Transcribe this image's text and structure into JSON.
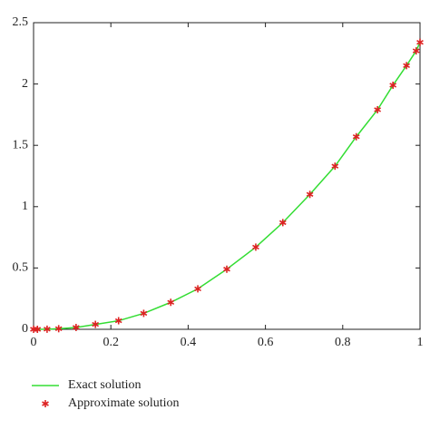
{
  "chart_data": {
    "type": "line",
    "x": [
      0,
      0.01,
      0.035,
      0.065,
      0.11,
      0.16,
      0.22,
      0.285,
      0.355,
      0.425,
      0.5,
      0.575,
      0.645,
      0.715,
      0.78,
      0.835,
      0.89,
      0.93,
      0.965,
      0.99,
      1.0
    ],
    "series": [
      {
        "name": "Exact solution",
        "color": "#33dd33",
        "style": "line",
        "values": [
          0,
          0,
          0.001,
          0.005,
          0.015,
          0.04,
          0.07,
          0.13,
          0.22,
          0.33,
          0.49,
          0.67,
          0.87,
          1.1,
          1.33,
          1.57,
          1.79,
          1.99,
          2.15,
          2.27,
          2.34
        ]
      },
      {
        "name": "Approximate solution",
        "color": "#dd2222",
        "style": "marker",
        "values": [
          0,
          0,
          0.001,
          0.005,
          0.015,
          0.04,
          0.07,
          0.13,
          0.22,
          0.33,
          0.49,
          0.67,
          0.87,
          1.1,
          1.33,
          1.57,
          1.79,
          1.99,
          2.15,
          2.27,
          2.34
        ]
      }
    ],
    "xlim": [
      0,
      1
    ],
    "xticks": [
      0,
      0.2,
      0.4,
      0.6,
      0.8,
      1
    ],
    "ylim": [
      0,
      2.5
    ],
    "yticks": [
      0,
      0.5,
      1,
      1.5,
      2,
      2.5
    ],
    "legend": "bottom-left"
  }
}
